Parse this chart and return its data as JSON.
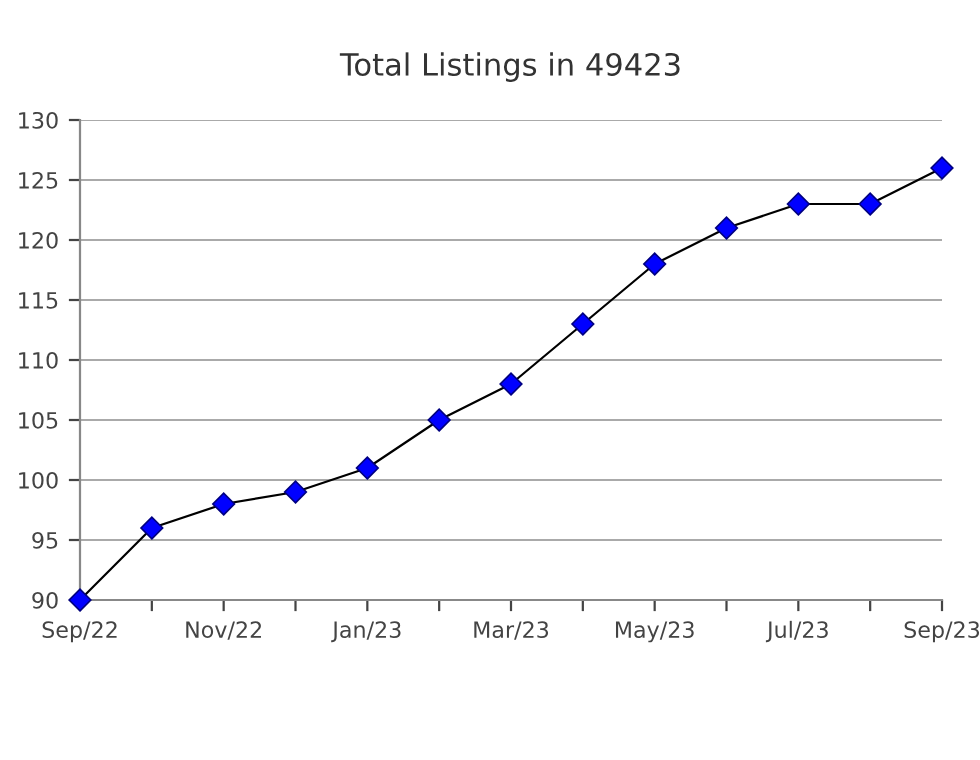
{
  "chart_data": {
    "type": "line",
    "title": "Total Listings in 49423",
    "categories": [
      "Sep/22",
      null,
      "Nov/22",
      null,
      "Jan/23",
      null,
      "Mar/23",
      null,
      "May/23",
      null,
      "Jul/23",
      null,
      "Sep/23"
    ],
    "series": [
      {
        "color": "#0000ff",
        "values": [
          90,
          96,
          98,
          99,
          101,
          105,
          108,
          113,
          118,
          121,
          123,
          123,
          126
        ]
      }
    ],
    "ylim": [
      90,
      130
    ],
    "yticks": [
      90,
      95,
      100,
      105,
      110,
      115,
      120,
      125,
      130
    ],
    "grid": "y",
    "marker": "diamond",
    "line_style": "solid"
  }
}
